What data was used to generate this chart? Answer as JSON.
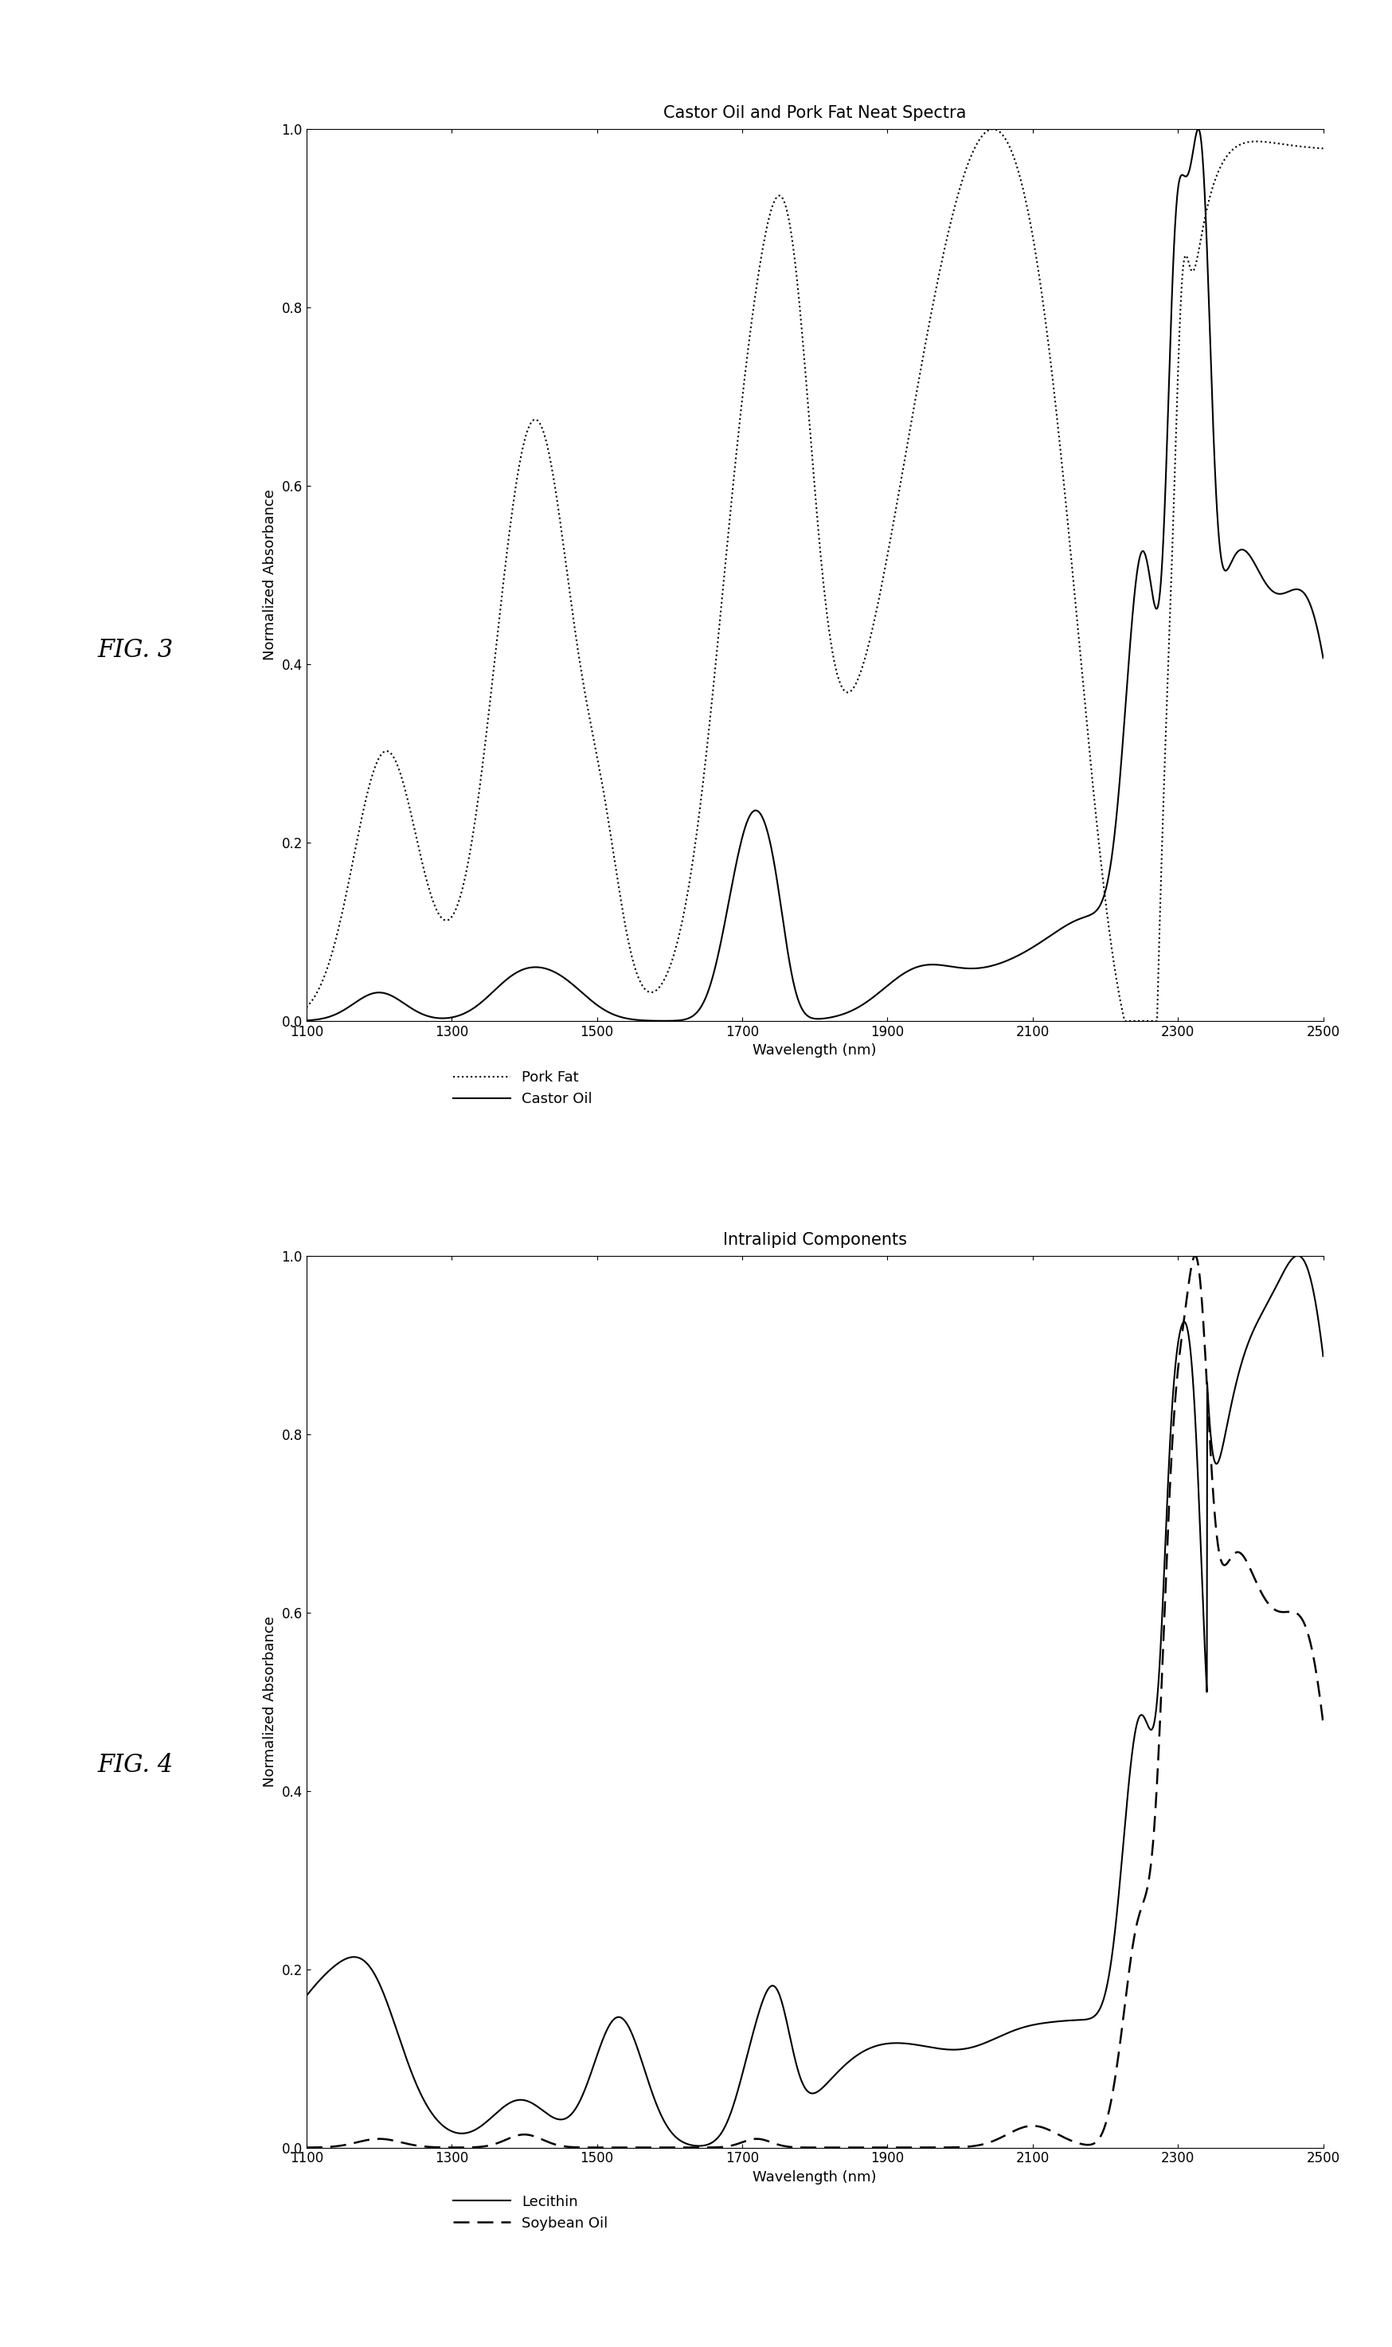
{
  "fig3": {
    "title": "Castor Oil and Pork Fat Neat Spectra",
    "xlabel": "Wavelength (nm)",
    "ylabel": "Normalized Absorbance",
    "xlim": [
      1100,
      2500
    ],
    "ylim": [
      0.0,
      1.0
    ],
    "xticks": [
      1100,
      1300,
      1500,
      1700,
      1900,
      2100,
      2300,
      2500
    ],
    "yticks": [
      0.0,
      0.2,
      0.4,
      0.6,
      0.8,
      1.0
    ],
    "fig_label": "FIG. 3",
    "legend": [
      {
        "label": "Pork Fat",
        "linestyle": "dotted"
      },
      {
        "label": "Castor Oil",
        "linestyle": "solid"
      }
    ]
  },
  "fig4": {
    "title": "Intralipid Components",
    "xlabel": "Wavelength (nm)",
    "ylabel": "Normalized Absorbance",
    "xlim": [
      1100,
      2500
    ],
    "ylim": [
      0.0,
      1.0
    ],
    "xticks": [
      1100,
      1300,
      1500,
      1700,
      1900,
      2100,
      2300,
      2500
    ],
    "yticks": [
      0.0,
      0.2,
      0.4,
      0.6,
      0.8,
      1.0
    ],
    "fig_label": "FIG. 4",
    "legend": [
      {
        "label": "Lecithin",
        "linestyle": "solid"
      },
      {
        "label": "Soybean Oil",
        "linestyle": "dashed"
      }
    ]
  },
  "background_color": "#ffffff",
  "line_color": "#000000",
  "title_fontsize": 15,
  "label_fontsize": 13,
  "tick_fontsize": 12,
  "legend_fontsize": 13,
  "fig_label_fontsize": 22
}
